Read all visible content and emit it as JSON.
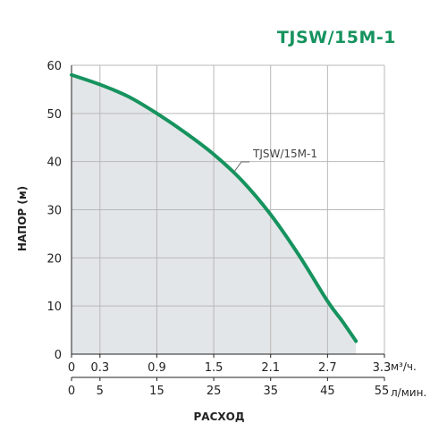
{
  "title": "TJSW/15M-1",
  "colors": {
    "accent": "#16935e",
    "fill": "#e3e6e8",
    "grid": "#b8b8b8",
    "axis": "#222222"
  },
  "chart_data": {
    "type": "line",
    "title": "TJSW/15M-1",
    "ylabel": "НАПОР (м)",
    "xlabel": "РАСХОД",
    "ylim": [
      0,
      60
    ],
    "yticks": [
      0,
      10,
      20,
      30,
      40,
      50,
      60
    ],
    "x_primary": {
      "unit": "м³/ч.",
      "ticks": [
        "0",
        "0.3",
        "0.9",
        "1.5",
        "2.1",
        "2.7",
        "3.3"
      ]
    },
    "x_secondary": {
      "unit": "л/мин.",
      "ticks": [
        "0",
        "5",
        "15",
        "25",
        "35",
        "45",
        "55"
      ]
    },
    "x_unit_ticks_lpm": [
      0,
      5,
      15,
      25,
      35,
      45,
      55
    ],
    "series": [
      {
        "name": "TJSW/15M-1",
        "x_lpm": [
          0,
          5,
          10,
          15,
          20,
          25,
          30,
          35,
          40,
          45,
          47.5,
          50
        ],
        "y": [
          58,
          56,
          53.5,
          50,
          46,
          41.5,
          36,
          29,
          20.5,
          11,
          7,
          2.7
        ]
      }
    ],
    "grid": true,
    "fill_under_curve": true
  }
}
